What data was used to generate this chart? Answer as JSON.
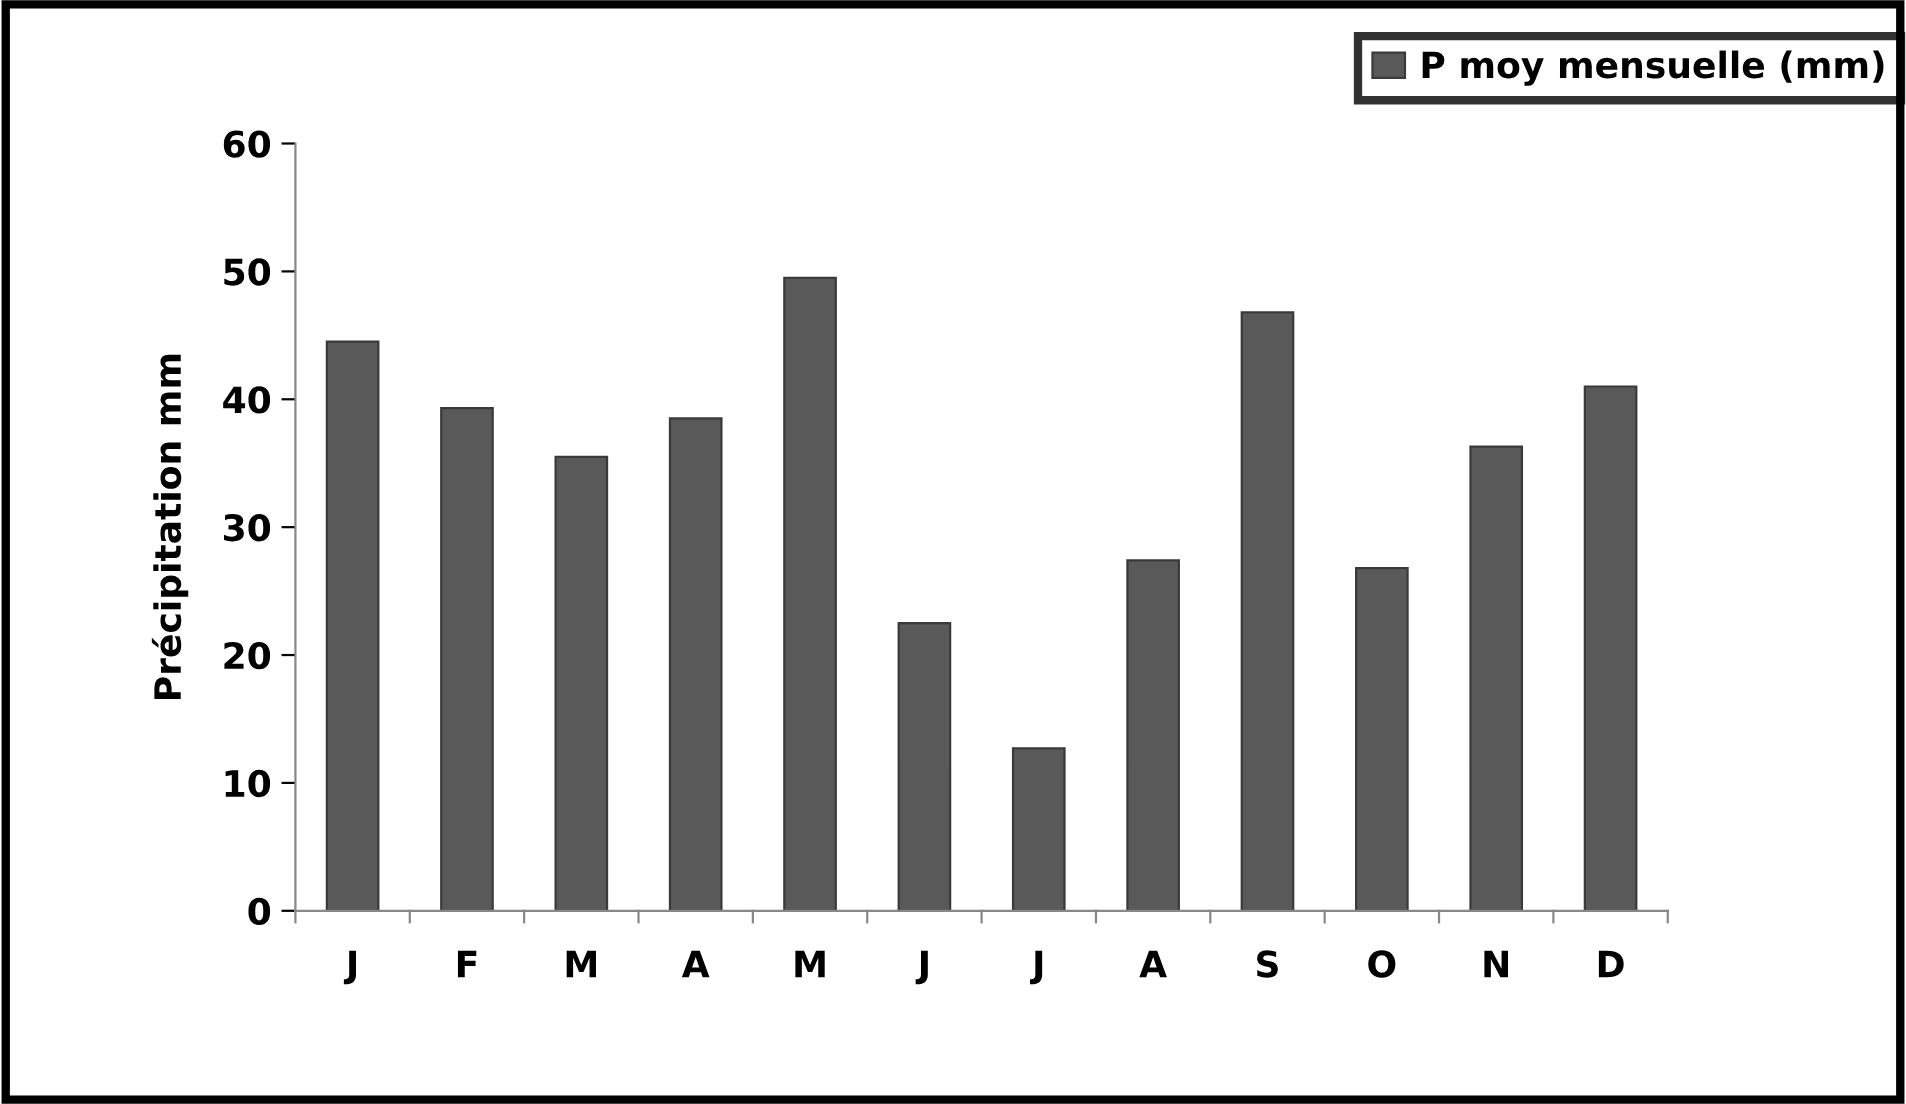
{
  "chart_data": {
    "type": "bar",
    "ylabel": "Précipitation mm",
    "categories": [
      "J",
      "F",
      "M",
      "A",
      "M",
      "J",
      "J",
      "A",
      "S",
      "O",
      "N",
      "D"
    ],
    "series": [
      {
        "name": "P moy mensuelle (mm)",
        "color": "#595959",
        "values": [
          44.5,
          39.3,
          35.5,
          38.5,
          49.5,
          22.5,
          12.7,
          27.4,
          46.8,
          26.8,
          36.3,
          41.0
        ]
      }
    ],
    "ylim": [
      0,
      60
    ],
    "yticks": [
      0,
      10,
      20,
      30,
      40,
      50,
      60
    ],
    "grid": false,
    "legend": "top right"
  }
}
